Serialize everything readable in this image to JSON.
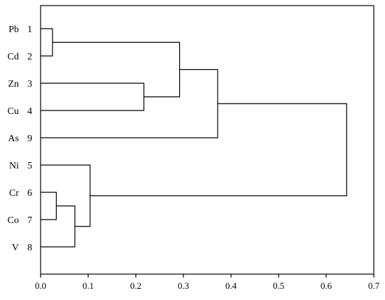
{
  "chart_data": {
    "type": "dendrogram",
    "title": "",
    "xlabel": "",
    "ylabel": "",
    "xlim": [
      0.0,
      0.7
    ],
    "grid": false,
    "legend": "none",
    "x_ticks": [
      "0.0",
      "0.1",
      "0.2",
      "0.3",
      "0.4",
      "0.5",
      "0.6",
      "0.7"
    ],
    "leaves": [
      {
        "element": "Pb",
        "index": "1"
      },
      {
        "element": "Cd",
        "index": "2"
      },
      {
        "element": "Zn",
        "index": "3"
      },
      {
        "element": "Cu",
        "index": "4"
      },
      {
        "element": "As",
        "index": "9"
      },
      {
        "element": "Ni",
        "index": "5"
      },
      {
        "element": "Cr",
        "index": "6"
      },
      {
        "element": "Co",
        "index": "7"
      },
      {
        "element": "V",
        "index": "8"
      }
    ],
    "merges": [
      {
        "left": "Pb",
        "right": "Cd",
        "height": 0.025
      },
      {
        "left": "Zn",
        "right": "Cu",
        "height": 0.217
      },
      {
        "left": "Pb+Cd",
        "right": "Zn+Cu",
        "height": 0.292
      },
      {
        "left": "Pb+Cd+Zn+Cu",
        "right": "As",
        "height": 0.372
      },
      {
        "left": "Cr",
        "right": "Co",
        "height": 0.033
      },
      {
        "left": "Cr+Co",
        "right": "V",
        "height": 0.072
      },
      {
        "left": "Ni",
        "right": "Cr+Co+V",
        "height": 0.104
      },
      {
        "left": "Pb+Cd+Zn+Cu+As",
        "right": "Ni+Cr+Co+V",
        "height": 0.643
      }
    ]
  }
}
